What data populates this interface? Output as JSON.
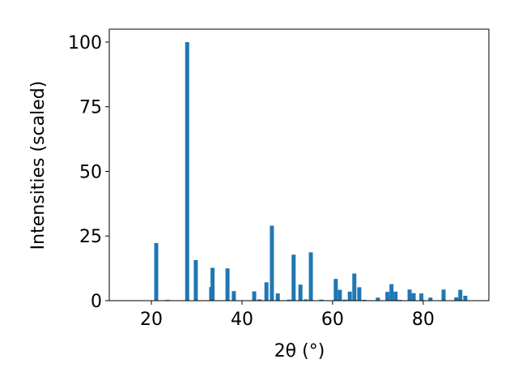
{
  "chart_data": {
    "type": "bar",
    "color": "#1f77b4",
    "x": [
      21.07,
      23.6,
      27.9,
      29.8,
      33.2,
      33.5,
      36.8,
      38.2,
      42.7,
      43.9,
      45.4,
      46.6,
      47.9,
      50.4,
      51.4,
      52.9,
      54.1,
      55.2,
      57.5,
      60.7,
      61.6,
      62.7,
      63.8,
      64.8,
      65.9,
      67.0,
      70.0,
      72.1,
      73.0,
      73.9,
      74.8,
      77.0,
      77.9,
      79.6,
      81.6,
      84.5,
      87.3,
      88.2,
      89.3
    ],
    "values": [
      22.3,
      0.3,
      100,
      15.7,
      5.3,
      12.7,
      12.5,
      3.7,
      3.6,
      0.5,
      7.1,
      29,
      2.8,
      0.4,
      17.8,
      6.2,
      0.5,
      18.7,
      0.4,
      8.4,
      4.2,
      0.4,
      3.5,
      10.5,
      5.2,
      0.3,
      1.2,
      3.4,
      6.4,
      3.5,
      0.3,
      4.3,
      2.9,
      2.8,
      1.2,
      4.3,
      1.3,
      4.2,
      1.9
    ],
    "xlabel": "2θ (°)",
    "ylabel": "Intensities (scaled)",
    "xlim": [
      10.7,
      94.5
    ],
    "ylim": [
      0,
      105
    ],
    "xticks": [
      20,
      40,
      60,
      80
    ],
    "yticks": [
      0,
      25,
      50,
      75,
      100
    ]
  }
}
